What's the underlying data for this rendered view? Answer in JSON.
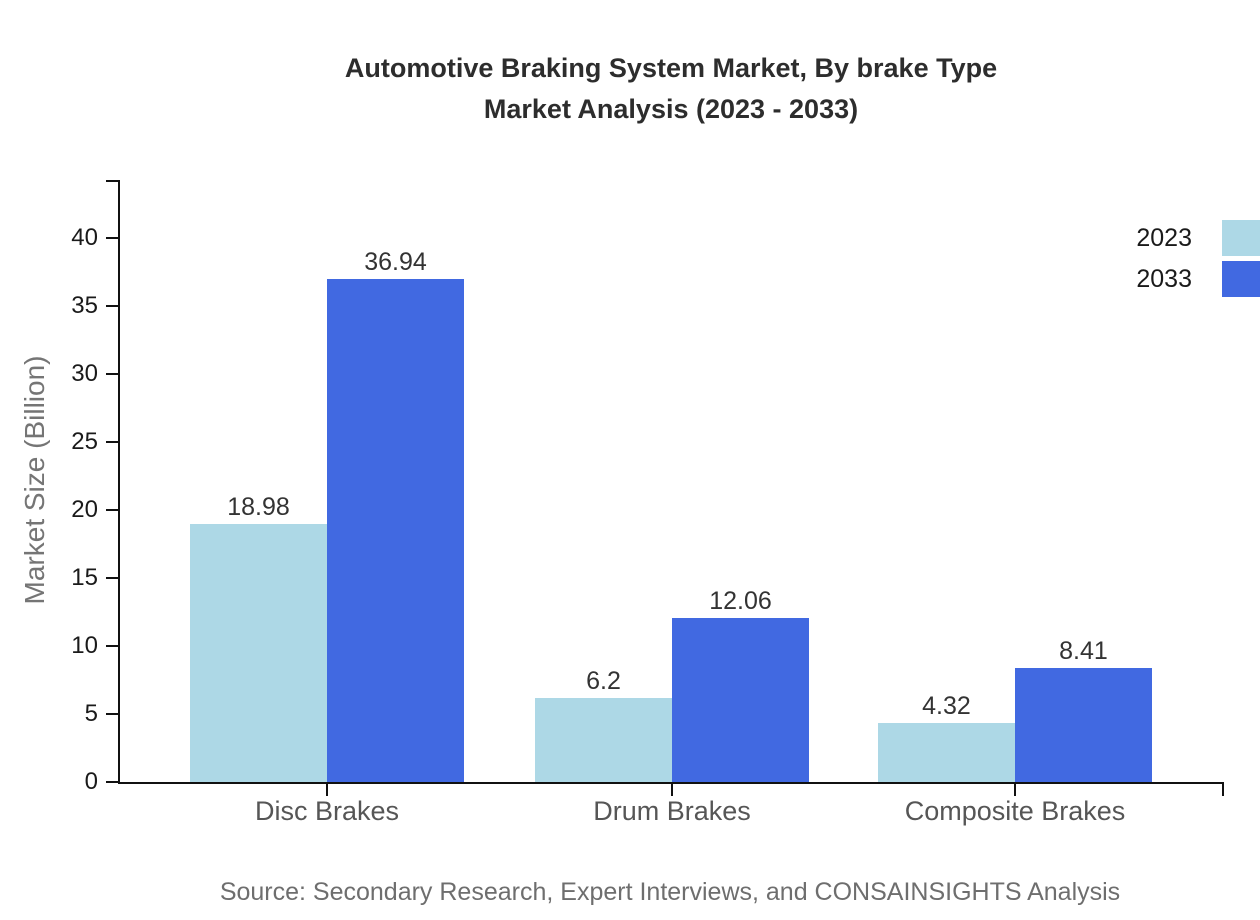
{
  "title": {
    "line1": "Automotive Braking System Market, By brake Type",
    "line2": "Market Analysis (2023 - 2033)"
  },
  "source": "Source: Secondary Research, Expert Interviews, and CONSAINSIGHTS Analysis",
  "legend": {
    "items": [
      {
        "label": "2023",
        "color": "#ADD8E6"
      },
      {
        "label": "2033",
        "color": "#4169E1"
      }
    ],
    "position": "top-right"
  },
  "palette": {
    "series_2023": "#ADD8E6",
    "series_2033": "#4169E1",
    "axis": "#111111",
    "title_text": "#2d2d2d",
    "category_text": "#565656",
    "source_text": "#6e6e6e",
    "background": "#ffffff"
  },
  "chart_data": {
    "type": "bar",
    "title": "Automotive Braking System Market, By brake Type Market Analysis (2023 - 2033)",
    "categories": [
      "Disc Brakes",
      "Drum Brakes",
      "Composite Brakes"
    ],
    "series": [
      {
        "name": "2023",
        "color": "#ADD8E6",
        "values": [
          18.98,
          6.2,
          4.32
        ]
      },
      {
        "name": "2033",
        "color": "#4169E1",
        "values": [
          36.94,
          12.06,
          8.41
        ]
      }
    ],
    "value_labels": [
      "18.98",
      "36.94",
      "6.2",
      "12.06",
      "4.32",
      "8.41"
    ],
    "xlabel": "",
    "ylabel": "Market Size (Billion)",
    "ylim": [
      0,
      44.25
    ],
    "yticks": [
      0,
      5,
      10,
      15,
      20,
      25,
      30,
      35,
      40
    ],
    "grid": false,
    "legend_position": "top-right"
  }
}
